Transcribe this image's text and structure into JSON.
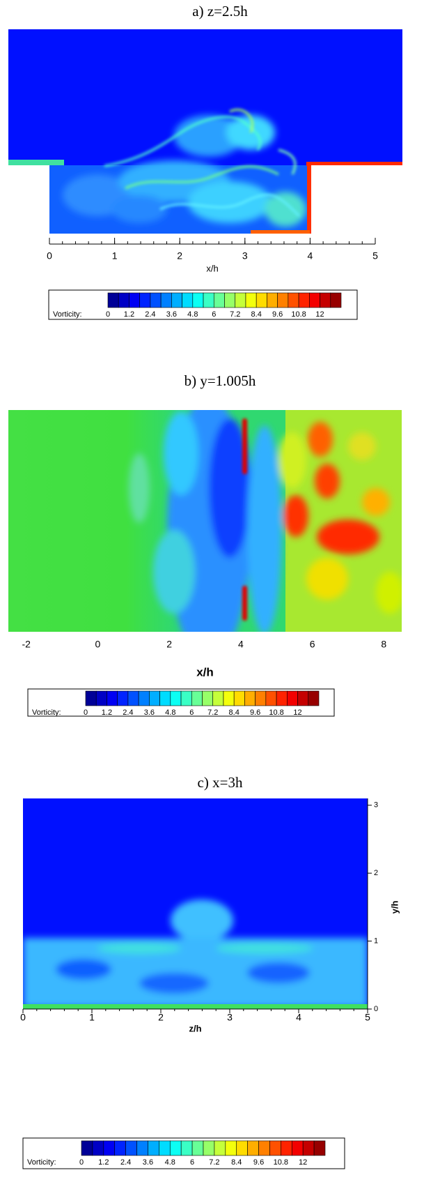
{
  "chart_data": [
    {
      "type": "contour",
      "title": "a) z=2.5h",
      "xlabel": "x/h",
      "xlim": [
        0,
        5
      ],
      "xticks": [
        0,
        1,
        2,
        3,
        4,
        5
      ],
      "colorbar": {
        "label": "Vorticity:",
        "lim": [
          0,
          13.2
        ],
        "ticks": [
          0,
          1.2,
          2.4,
          3.6,
          4.8,
          6,
          7.2,
          8.4,
          9.6,
          10.8,
          12
        ],
        "colormap": "jet"
      }
    },
    {
      "type": "contour",
      "title": "b) y=1.005h",
      "xlabel": "x/h",
      "xlim": [
        -2.5,
        8.5
      ],
      "xticks": [
        -2,
        0,
        2,
        4,
        6,
        8
      ],
      "colorbar": {
        "label": "Vorticity:",
        "lim": [
          0,
          13.2
        ],
        "ticks": [
          0,
          1.2,
          2.4,
          3.6,
          4.8,
          6,
          7.2,
          8.4,
          9.6,
          10.8,
          12
        ],
        "colormap": "jet"
      }
    },
    {
      "type": "contour",
      "title": "c) x=3h",
      "xlabel": "z/h",
      "ylabel": "y/h",
      "xlim": [
        0,
        5
      ],
      "xticks": [
        0,
        1,
        2,
        3,
        4,
        5
      ],
      "ylim": [
        0,
        3.1
      ],
      "yticks": [
        0,
        1,
        2,
        3
      ],
      "colorbar": {
        "label": "Vorticity:",
        "lim": [
          0,
          13.2
        ],
        "ticks": [
          0,
          1.2,
          2.4,
          3.6,
          4.8,
          6,
          7.2,
          8.4,
          9.6,
          10.8,
          12
        ],
        "colormap": "jet"
      }
    }
  ]
}
